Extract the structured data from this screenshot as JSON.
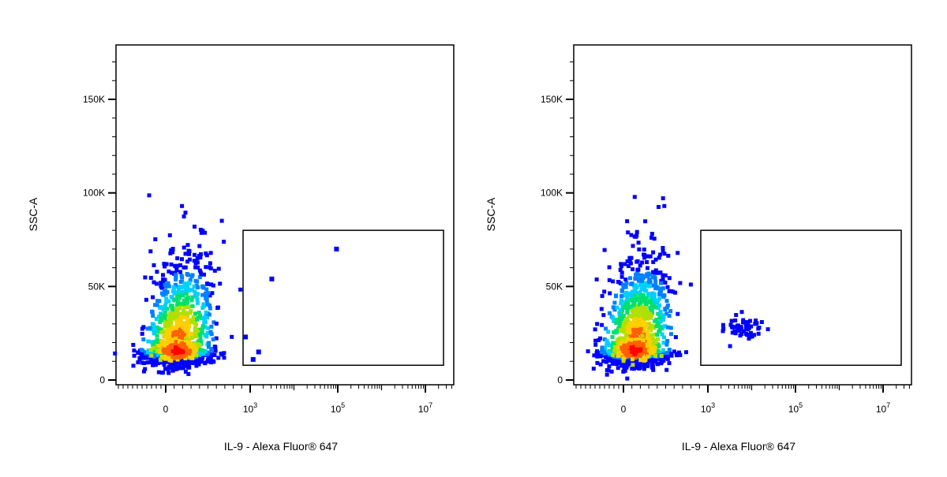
{
  "chart_data": [
    {
      "type": "scatter",
      "subtype": "flow-cytometry-density-plot",
      "xlabel": "IL-9 - Alexa Fluor® 647",
      "ylabel": "SSC-A",
      "x_scale": "biexponential",
      "x_ticks": [
        {
          "label": "0"
        },
        {
          "label": "10",
          "exp": "3"
        },
        {
          "label": "10",
          "exp": "5"
        },
        {
          "label": "10",
          "exp": "7"
        }
      ],
      "y_ticks": [
        "0",
        "50K",
        "100K",
        "150K"
      ],
      "ylim": [
        0,
        175000
      ],
      "grid": false,
      "density_colors": [
        "#0000ff",
        "#0080ff",
        "#00d0ff",
        "#00e070",
        "#b0e000",
        "#ffd000",
        "#ff6000",
        "#ff0000"
      ],
      "gate": {
        "x_range": [
          1000,
          50000000
        ],
        "y_range": [
          10000,
          80000
        ]
      },
      "main_population": {
        "x_center": 0,
        "y_center": 17000
      },
      "gate_events": [
        {
          "x": 1000,
          "y": 23000
        },
        {
          "x": 1500,
          "y": 11000
        },
        {
          "x": 2000,
          "y": 15000
        },
        {
          "x": 4000,
          "y": 54000
        },
        {
          "x": 120000,
          "y": 70000
        }
      ]
    },
    {
      "type": "scatter",
      "subtype": "flow-cytometry-density-plot",
      "xlabel": "IL-9 - Alexa Fluor® 647",
      "ylabel": "SSC-A",
      "x_scale": "biexponential",
      "x_ticks": [
        {
          "label": "0"
        },
        {
          "label": "10",
          "exp": "3"
        },
        {
          "label": "10",
          "exp": "5"
        },
        {
          "label": "10",
          "exp": "7"
        }
      ],
      "y_ticks": [
        "0",
        "50K",
        "100K",
        "150K"
      ],
      "ylim": [
        0,
        175000
      ],
      "grid": false,
      "density_colors": [
        "#0000ff",
        "#0080ff",
        "#00d0ff",
        "#00e070",
        "#b0e000",
        "#ffd000",
        "#ff6000",
        "#ff0000"
      ],
      "gate": {
        "x_range": [
          1000,
          50000000
        ],
        "y_range": [
          10000,
          80000
        ]
      },
      "main_population": {
        "x_center": 0,
        "y_center": 17000
      },
      "gate_cluster": {
        "x_center": 8000,
        "y_center": 29000,
        "events": 60
      }
    }
  ]
}
